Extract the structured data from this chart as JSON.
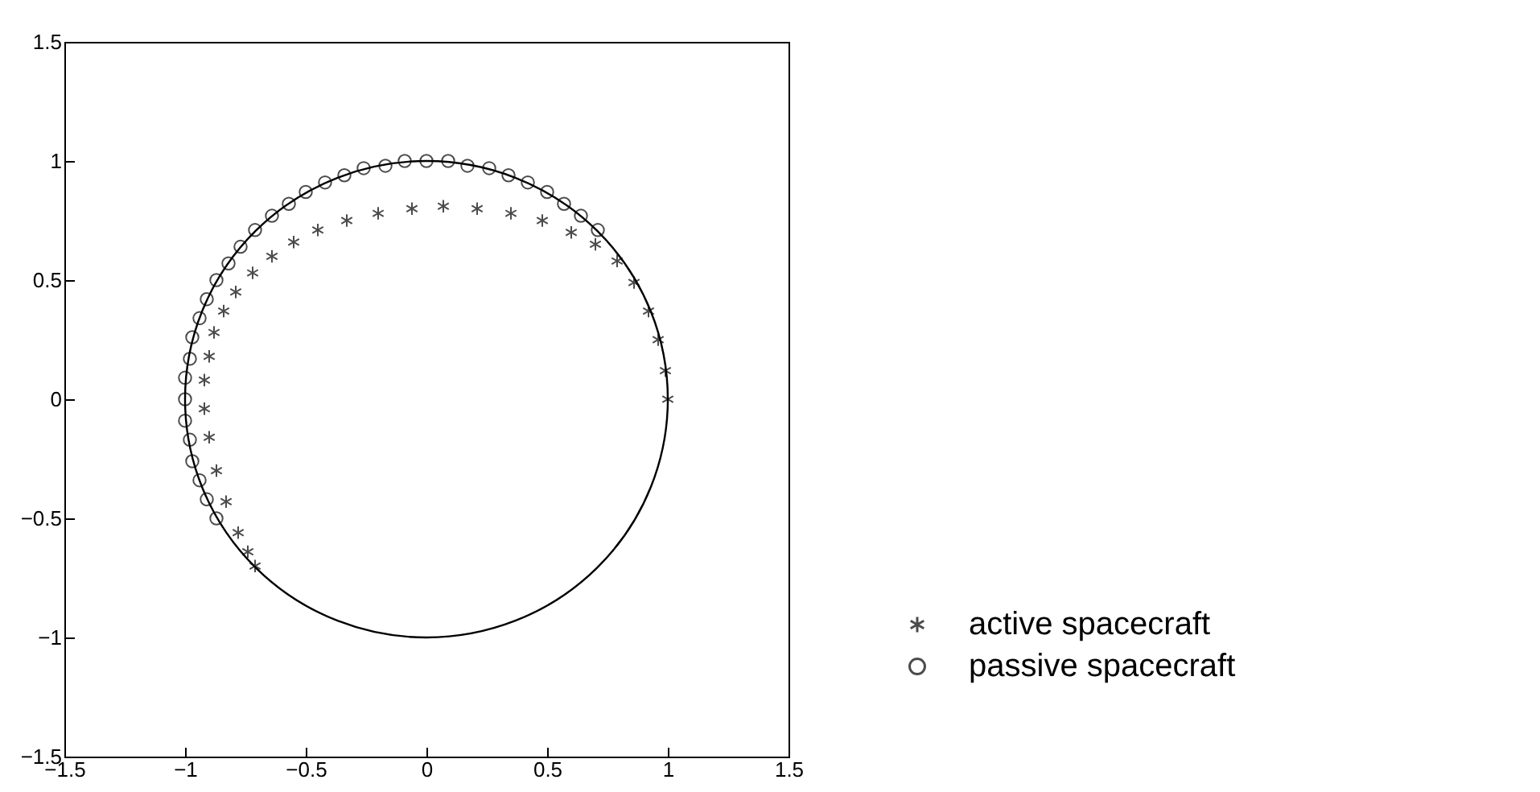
{
  "chart_data": {
    "type": "scatter",
    "xlim": [
      -1.5,
      1.5
    ],
    "ylim": [
      -1.5,
      1.5
    ],
    "xticks": [
      -1.5,
      -1,
      -0.5,
      0,
      0.5,
      1,
      1.5
    ],
    "yticks": [
      -1.5,
      -1,
      -0.5,
      0,
      0.5,
      1,
      1.5
    ],
    "legend": "right",
    "series": [
      {
        "name": "active spacecraft",
        "marker": "cross",
        "color": "#000000",
        "x": [
          1,
          0.99,
          0.96,
          0.92,
          0.86,
          0.79,
          0.7,
          0.6,
          0.48,
          0.35,
          0.21,
          0.07,
          -0.06,
          -0.2,
          -0.33,
          -0.45,
          -0.55,
          -0.64,
          -0.72,
          -0.79,
          -0.84,
          -0.88,
          -0.9,
          -0.92,
          -0.92,
          -0.9,
          -0.87,
          -0.83,
          -0.78,
          -0.74,
          -0.71
        ],
        "values": [
          0,
          0.12,
          0.25,
          0.37,
          0.49,
          0.58,
          0.65,
          0.7,
          0.75,
          0.78,
          0.8,
          0.81,
          0.8,
          0.78,
          0.75,
          0.71,
          0.66,
          0.6,
          0.53,
          0.45,
          0.37,
          0.28,
          0.18,
          0.08,
          -0.04,
          -0.16,
          -0.3,
          -0.43,
          -0.56,
          -0.64,
          -0.7
        ]
      },
      {
        "name": "passive spacecraft",
        "marker": "circle",
        "color": "#000000",
        "x": [
          0.71,
          0.64,
          0.57,
          0.5,
          0.42,
          0.34,
          0.26,
          0.17,
          0.09,
          0,
          -0.09,
          -0.17,
          -0.26,
          -0.34,
          -0.42,
          -0.5,
          -0.57,
          -0.64,
          -0.71,
          -0.77,
          -0.82,
          -0.87,
          -0.91,
          -0.94,
          -0.97,
          -0.98,
          -1,
          -1,
          -1,
          -0.98,
          -0.97,
          -0.94,
          -0.91,
          -0.87
        ],
        "values": [
          0.71,
          0.77,
          0.82,
          0.87,
          0.91,
          0.94,
          0.97,
          0.98,
          1,
          1,
          1,
          0.98,
          0.97,
          0.94,
          0.91,
          0.87,
          0.82,
          0.77,
          0.71,
          0.64,
          0.57,
          0.5,
          0.42,
          0.34,
          0.26,
          0.17,
          0.09,
          0,
          -0.09,
          -0.17,
          -0.26,
          -0.34,
          -0.42,
          -0.5
        ]
      }
    ]
  }
}
